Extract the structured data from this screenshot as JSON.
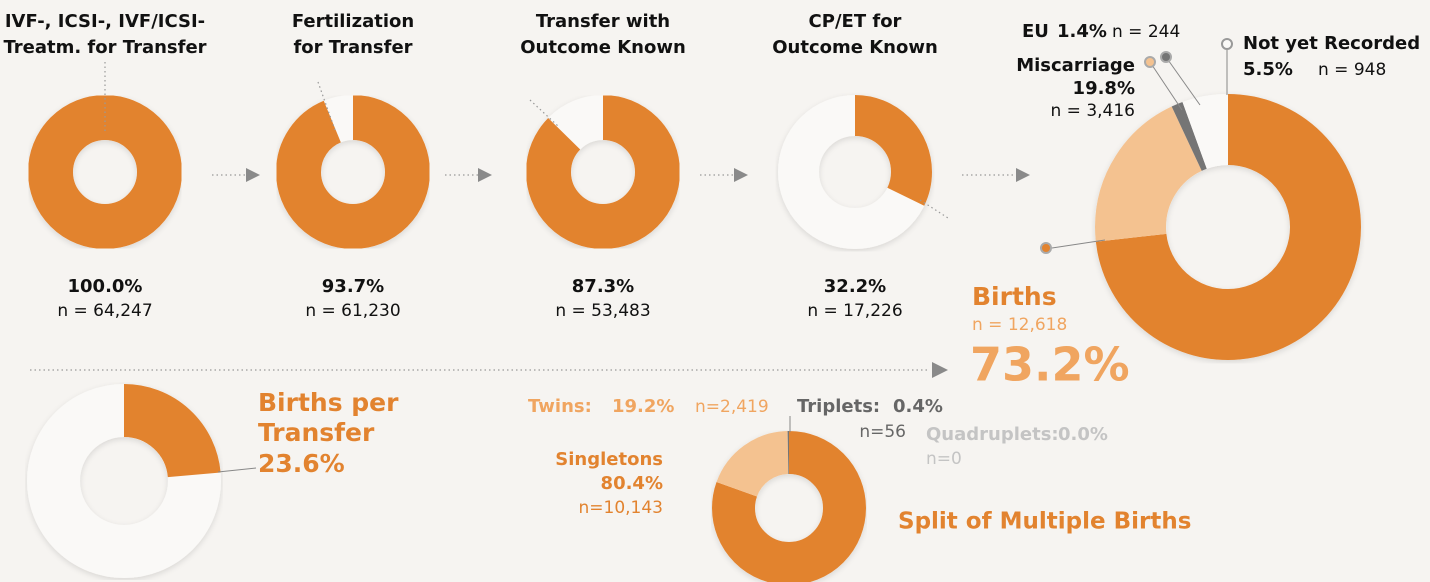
{
  "chart_data": [
    {
      "type": "donut",
      "title": [
        "IVF-, ICSI-, IVF/ICSI-",
        "Treatm. for Transfer"
      ],
      "values": [
        100.0
      ],
      "value_labels": [
        "100.0%"
      ],
      "n": [
        64247
      ],
      "n_labels": [
        "n = 64,247"
      ],
      "color": "#e2832f"
    },
    {
      "type": "donut",
      "title": [
        "Fertilization",
        "for Transfer"
      ],
      "values": [
        93.7
      ],
      "value_labels": [
        "93.7%"
      ],
      "n": [
        61230
      ],
      "n_labels": [
        "n = 61,230"
      ],
      "color": "#e2832f"
    },
    {
      "type": "donut",
      "title": [
        "Transfer with",
        "Outcome Known"
      ],
      "values": [
        87.3
      ],
      "value_labels": [
        "87.3%"
      ],
      "n": [
        53483
      ],
      "n_labels": [
        "n = 53,483"
      ],
      "color": "#e2832f"
    },
    {
      "type": "donut",
      "title": [
        "CP/ET for",
        "Outcome Known"
      ],
      "values": [
        32.2
      ],
      "value_labels": [
        "32.2%"
      ],
      "n": [
        17226
      ],
      "n_labels": [
        "n = 17,226"
      ],
      "color": "#e2832f"
    },
    {
      "type": "donut",
      "labels": [
        "Births",
        "Miscarriage",
        "EU",
        "Not yet Recorded"
      ],
      "values": [
        73.2,
        19.8,
        1.4,
        5.5
      ],
      "value_labels": [
        "73.2%",
        "19.8%",
        "1.4%",
        "5.5%"
      ],
      "n": [
        12618,
        3416,
        244,
        948
      ],
      "n_labels": [
        "n = 12,618",
        "n = 3,416",
        "n = 244",
        "n = 948"
      ],
      "colors": [
        "#e2832f",
        "#f4c290",
        "#747474",
        "#faf9f7"
      ]
    },
    {
      "type": "donut",
      "title": [
        "Births per",
        "Transfer"
      ],
      "values": [
        23.6
      ],
      "value_labels": [
        "23.6%"
      ],
      "color": "#e2832f"
    },
    {
      "type": "donut",
      "title": "Split of Multiple Births",
      "labels": [
        "Singletons",
        "Twins:",
        "Triplets:",
        "Quadruplets:"
      ],
      "values": [
        80.4,
        19.2,
        0.4,
        0.0
      ],
      "value_labels": [
        "80.4%",
        "19.2%",
        "0.4%",
        "0.0%"
      ],
      "n": [
        10143,
        2419,
        56,
        0
      ],
      "n_labels": [
        "n=10,143",
        "n=2,419",
        "n=56",
        "n=0"
      ],
      "colors": [
        "#e2832f",
        "#f4c290",
        "#747474",
        "#cfcfcf"
      ]
    }
  ]
}
